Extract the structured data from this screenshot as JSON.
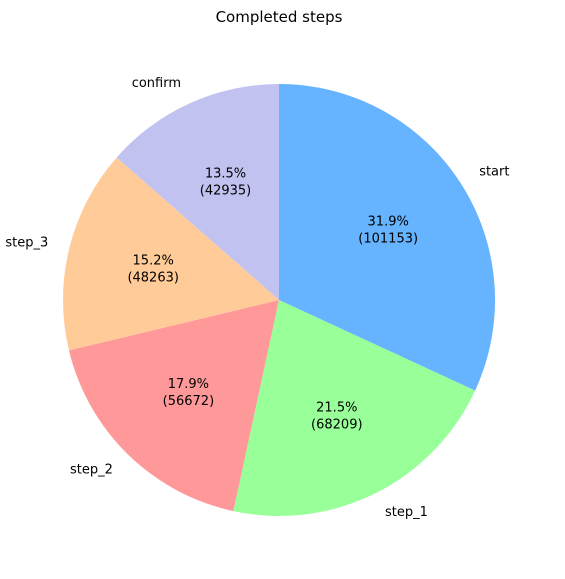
{
  "chart_data": {
    "type": "pie",
    "title": "Completed steps",
    "start_angle_deg": 90,
    "direction": "clockwise",
    "slices": [
      {
        "label": "start",
        "value": 101153,
        "percent": "31.9%",
        "color": "#66b3ff"
      },
      {
        "label": "step_1",
        "value": 68209,
        "percent": "21.5%",
        "color": "#99ff99"
      },
      {
        "label": "step_2",
        "value": 56672,
        "percent": "17.9%",
        "color": "#ff9999"
      },
      {
        "label": "step_3",
        "value": 48263,
        "percent": "15.2%",
        "color": "#ffcc99"
      },
      {
        "label": "confirm",
        "value": 42935,
        "percent": "13.5%",
        "color": "#c2c2f0"
      }
    ]
  }
}
